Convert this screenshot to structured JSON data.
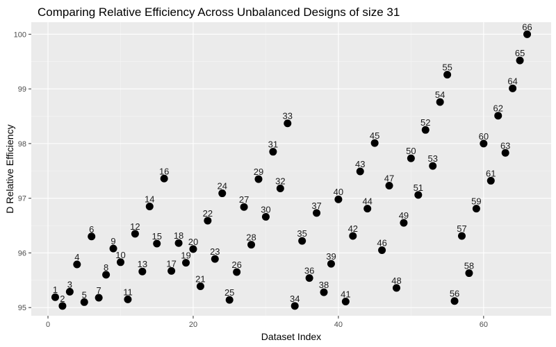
{
  "chart_data": {
    "type": "scatter",
    "title": "Comparing Relative Efficiency Across Unbalanced Designs of size 31",
    "xlabel": "Dataset Index",
    "ylabel": "D Relative Efficiency",
    "xlim": [
      -2.3,
      69.3
    ],
    "ylim": [
      94.85,
      100.22
    ],
    "x_ticks": [
      0,
      20,
      40,
      60
    ],
    "x_tick_labels": [
      "0",
      "20",
      "40",
      "60"
    ],
    "y_ticks": [
      95,
      96,
      97,
      98,
      99,
      100
    ],
    "y_tick_labels": [
      "95",
      "96",
      "97",
      "98",
      "99",
      "100"
    ],
    "grid": true,
    "background": "#ebebeb",
    "grid_major_color": "#ffffff",
    "point_color": "#000000",
    "points": [
      {
        "x": 1,
        "y": 95.19,
        "label": "1"
      },
      {
        "x": 2,
        "y": 95.03,
        "label": "2"
      },
      {
        "x": 3,
        "y": 95.29,
        "label": "3"
      },
      {
        "x": 4,
        "y": 95.79,
        "label": "4"
      },
      {
        "x": 5,
        "y": 95.1,
        "label": "5"
      },
      {
        "x": 6,
        "y": 96.3,
        "label": "6"
      },
      {
        "x": 7,
        "y": 95.18,
        "label": "7"
      },
      {
        "x": 8,
        "y": 95.6,
        "label": "8"
      },
      {
        "x": 9,
        "y": 96.08,
        "label": "9"
      },
      {
        "x": 10,
        "y": 95.83,
        "label": "10"
      },
      {
        "x": 11,
        "y": 95.15,
        "label": "11"
      },
      {
        "x": 12,
        "y": 96.35,
        "label": "12"
      },
      {
        "x": 13,
        "y": 95.66,
        "label": "13"
      },
      {
        "x": 14,
        "y": 96.85,
        "label": "14"
      },
      {
        "x": 15,
        "y": 96.17,
        "label": "15"
      },
      {
        "x": 16,
        "y": 97.36,
        "label": "16"
      },
      {
        "x": 17,
        "y": 95.67,
        "label": "17"
      },
      {
        "x": 18,
        "y": 96.18,
        "label": "18"
      },
      {
        "x": 19,
        "y": 95.82,
        "label": "19"
      },
      {
        "x": 20,
        "y": 96.07,
        "label": "20"
      },
      {
        "x": 21,
        "y": 95.39,
        "label": "21"
      },
      {
        "x": 22,
        "y": 96.59,
        "label": "22"
      },
      {
        "x": 23,
        "y": 95.89,
        "label": "23"
      },
      {
        "x": 24,
        "y": 97.09,
        "label": "24"
      },
      {
        "x": 25,
        "y": 95.14,
        "label": "25"
      },
      {
        "x": 26,
        "y": 95.65,
        "label": "26"
      },
      {
        "x": 27,
        "y": 96.84,
        "label": "27"
      },
      {
        "x": 28,
        "y": 96.15,
        "label": "28"
      },
      {
        "x": 29,
        "y": 97.35,
        "label": "29"
      },
      {
        "x": 30,
        "y": 96.66,
        "label": "30"
      },
      {
        "x": 31,
        "y": 97.85,
        "label": "31"
      },
      {
        "x": 32,
        "y": 97.18,
        "label": "32"
      },
      {
        "x": 33,
        "y": 98.37,
        "label": "33"
      },
      {
        "x": 34,
        "y": 95.03,
        "label": "34"
      },
      {
        "x": 35,
        "y": 96.22,
        "label": "35"
      },
      {
        "x": 36,
        "y": 95.54,
        "label": "36"
      },
      {
        "x": 37,
        "y": 96.73,
        "label": "37"
      },
      {
        "x": 38,
        "y": 95.28,
        "label": "38"
      },
      {
        "x": 39,
        "y": 95.8,
        "label": "39"
      },
      {
        "x": 40,
        "y": 96.98,
        "label": "40"
      },
      {
        "x": 41,
        "y": 95.11,
        "label": "41"
      },
      {
        "x": 42,
        "y": 96.31,
        "label": "42"
      },
      {
        "x": 43,
        "y": 97.49,
        "label": "43"
      },
      {
        "x": 44,
        "y": 96.81,
        "label": "44"
      },
      {
        "x": 45,
        "y": 98.01,
        "label": "45"
      },
      {
        "x": 46,
        "y": 96.05,
        "label": "46"
      },
      {
        "x": 47,
        "y": 97.23,
        "label": "47"
      },
      {
        "x": 48,
        "y": 95.36,
        "label": "48"
      },
      {
        "x": 49,
        "y": 96.55,
        "label": "49"
      },
      {
        "x": 50,
        "y": 97.73,
        "label": "50"
      },
      {
        "x": 51,
        "y": 97.06,
        "label": "51"
      },
      {
        "x": 52,
        "y": 98.25,
        "label": "52"
      },
      {
        "x": 53,
        "y": 97.59,
        "label": "53"
      },
      {
        "x": 54,
        "y": 98.76,
        "label": "54"
      },
      {
        "x": 55,
        "y": 99.26,
        "label": "55"
      },
      {
        "x": 56,
        "y": 95.12,
        "label": "56"
      },
      {
        "x": 57,
        "y": 96.31,
        "label": "57"
      },
      {
        "x": 58,
        "y": 95.63,
        "label": "58"
      },
      {
        "x": 59,
        "y": 96.81,
        "label": "59"
      },
      {
        "x": 60,
        "y": 98.0,
        "label": "60"
      },
      {
        "x": 61,
        "y": 97.32,
        "label": "61"
      },
      {
        "x": 62,
        "y": 98.51,
        "label": "62"
      },
      {
        "x": 63,
        "y": 97.83,
        "label": "63"
      },
      {
        "x": 64,
        "y": 99.01,
        "label": "64"
      },
      {
        "x": 65,
        "y": 99.52,
        "label": "65"
      },
      {
        "x": 66,
        "y": 100.0,
        "label": "66"
      }
    ]
  }
}
